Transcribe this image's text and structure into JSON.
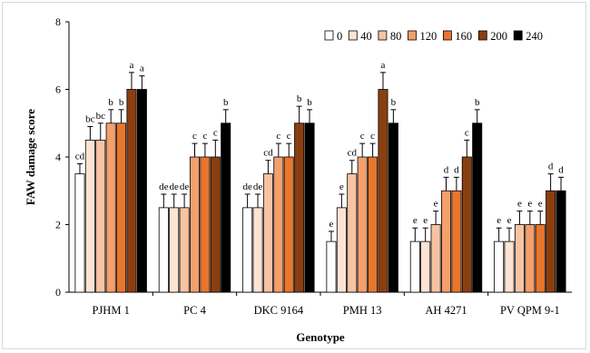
{
  "chart_data": {
    "type": "bar",
    "xlabel": "Genotype",
    "ylabel": "FAW damage score",
    "ylim": [
      0,
      8
    ],
    "yticks": [
      "0",
      "2",
      "4",
      "6",
      "8"
    ],
    "grid": false,
    "legend_position": "top-right",
    "categories": [
      "PJHM 1",
      "PC 4",
      "DKC 9164",
      "PMH 13",
      "AH 4271",
      "PV QPM 9-1"
    ],
    "series": [
      {
        "name": "0",
        "color": "#ffffff",
        "values": [
          3.5,
          2.5,
          2.5,
          1.5,
          1.5,
          1.5
        ],
        "errors": [
          0.3,
          0.4,
          0.4,
          0.3,
          0.4,
          0.4
        ],
        "letters": [
          "cd",
          "de",
          "de",
          "e",
          "e",
          "e"
        ]
      },
      {
        "name": "40",
        "color": "#fde3d3",
        "values": [
          4.5,
          2.5,
          2.5,
          2.5,
          1.5,
          1.5
        ],
        "errors": [
          0.4,
          0.4,
          0.4,
          0.4,
          0.4,
          0.4
        ],
        "letters": [
          "bc",
          "de",
          "de",
          "e",
          "e",
          "e"
        ]
      },
      {
        "name": "80",
        "color": "#f7c3a3",
        "values": [
          4.5,
          2.5,
          3.5,
          3.5,
          2.0,
          2.0
        ],
        "errors": [
          0.5,
          0.4,
          0.4,
          0.4,
          0.4,
          0.4
        ],
        "letters": [
          "bc",
          "de",
          "cd",
          "cd",
          "e",
          "e"
        ]
      },
      {
        "name": "120",
        "color": "#f3a06d",
        "values": [
          5.0,
          4.0,
          4.0,
          4.0,
          3.0,
          2.0
        ],
        "errors": [
          0.4,
          0.4,
          0.4,
          0.4,
          0.4,
          0.4
        ],
        "letters": [
          "b",
          "c",
          "c",
          "c",
          "d",
          "e"
        ]
      },
      {
        "name": "160",
        "color": "#e8762d",
        "values": [
          5.0,
          4.0,
          4.0,
          4.0,
          3.0,
          2.0
        ],
        "errors": [
          0.4,
          0.4,
          0.4,
          0.4,
          0.4,
          0.4
        ],
        "letters": [
          "b",
          "c",
          "c",
          "c",
          "d",
          "e"
        ]
      },
      {
        "name": "200",
        "color": "#8b3f10",
        "values": [
          6.0,
          4.0,
          5.0,
          6.0,
          4.0,
          3.0
        ],
        "errors": [
          0.5,
          0.5,
          0.5,
          0.5,
          0.5,
          0.5
        ],
        "letters": [
          "a",
          "c",
          "b",
          "a",
          "c",
          "d"
        ]
      },
      {
        "name": "240",
        "color": "#000000",
        "values": [
          6.0,
          5.0,
          5.0,
          5.0,
          5.0,
          3.0
        ],
        "errors": [
          0.4,
          0.4,
          0.4,
          0.4,
          0.4,
          0.4
        ],
        "letters": [
          "a",
          "b",
          "b",
          "b",
          "b",
          "d"
        ]
      }
    ]
  }
}
